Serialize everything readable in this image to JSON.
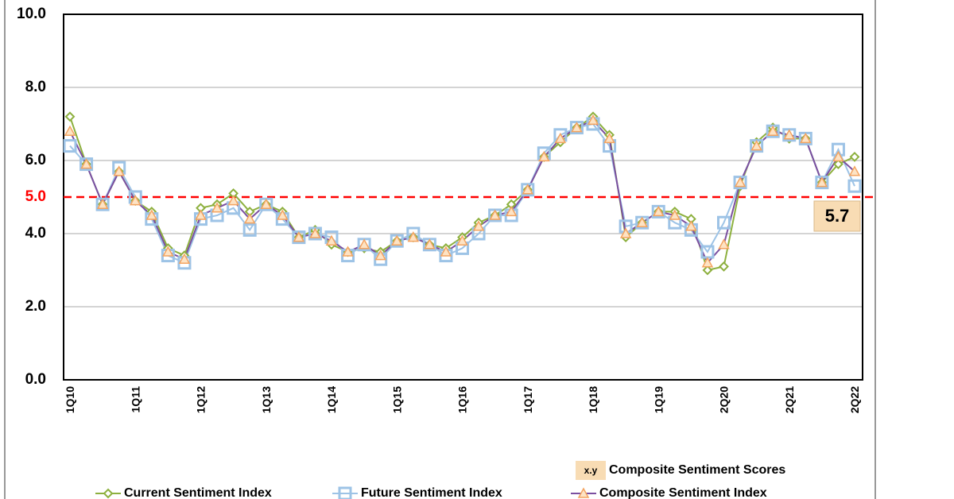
{
  "chart_data": {
    "type": "line",
    "categories": [
      "1Q10",
      null,
      null,
      null,
      "1Q11",
      null,
      null,
      null,
      "1Q12",
      null,
      null,
      null,
      "1Q13",
      null,
      null,
      null,
      "1Q14",
      null,
      null,
      null,
      "1Q15",
      null,
      null,
      null,
      "1Q16",
      null,
      null,
      null,
      "1Q17",
      null,
      null,
      null,
      "1Q18",
      null,
      null,
      null,
      "1Q19",
      null,
      null,
      null,
      "2Q20",
      null,
      null,
      null,
      "2Q21",
      null,
      null,
      null,
      "2Q22"
    ],
    "series": [
      {
        "name": "Current Sentiment Index",
        "color": "#8db03e",
        "marker": "diamond",
        "values": [
          7.2,
          5.9,
          4.8,
          5.7,
          4.9,
          4.6,
          3.6,
          3.4,
          4.7,
          4.8,
          5.1,
          4.6,
          4.8,
          4.6,
          3.9,
          4.1,
          3.7,
          3.5,
          3.6,
          3.5,
          3.8,
          3.9,
          3.7,
          3.6,
          3.9,
          4.3,
          4.5,
          4.8,
          5.2,
          6.1,
          6.5,
          6.9,
          7.2,
          6.7,
          3.9,
          4.3,
          4.6,
          4.6,
          4.4,
          3.0,
          3.1,
          5.3,
          6.5,
          6.9,
          6.6,
          6.6,
          5.4,
          5.9,
          6.1
        ]
      },
      {
        "name": "Future Sentiment Index",
        "color": "#9dc3e6",
        "marker": "square",
        "values": [
          6.4,
          5.9,
          4.8,
          5.8,
          5.0,
          4.4,
          3.4,
          3.2,
          4.4,
          4.5,
          4.7,
          4.1,
          4.8,
          4.4,
          3.9,
          4.0,
          3.9,
          3.4,
          3.7,
          3.3,
          3.8,
          4.0,
          3.7,
          3.4,
          3.6,
          4.0,
          4.5,
          4.5,
          5.2,
          6.2,
          6.7,
          6.9,
          7.0,
          6.4,
          4.2,
          4.3,
          4.6,
          4.3,
          4.1,
          3.5,
          4.3,
          5.4,
          6.4,
          6.8,
          6.7,
          6.6,
          5.4,
          6.3,
          5.3
        ]
      },
      {
        "name": "Composite Sentiment Index",
        "color": "#7b4fa0",
        "marker": "triangle",
        "values": [
          6.8,
          5.9,
          4.8,
          5.7,
          4.9,
          4.5,
          3.5,
          3.3,
          4.5,
          4.7,
          4.9,
          4.4,
          4.8,
          4.5,
          3.9,
          4.0,
          3.8,
          3.5,
          3.7,
          3.4,
          3.8,
          3.9,
          3.7,
          3.5,
          3.8,
          4.2,
          4.5,
          4.6,
          5.2,
          6.1,
          6.6,
          6.9,
          7.1,
          6.6,
          4.0,
          4.3,
          4.6,
          4.5,
          4.2,
          3.2,
          3.7,
          5.4,
          6.4,
          6.8,
          6.7,
          6.6,
          5.4,
          6.1,
          5.7
        ]
      }
    ],
    "ylim": [
      0,
      10
    ],
    "yticks": [
      {
        "value": 0,
        "label": "0.0"
      },
      {
        "value": 2,
        "label": "2.0"
      },
      {
        "value": 4,
        "label": "4.0"
      },
      {
        "value": 6,
        "label": "6.0"
      },
      {
        "value": 8,
        "label": "8.0"
      },
      {
        "value": 10,
        "label": "10.0"
      }
    ],
    "grid": true,
    "reference_line": {
      "value": 5,
      "label": "5.0",
      "color": "#ff0000"
    },
    "callout": "5.7",
    "score_legend": {
      "sample": "x.y",
      "label": "Composite Sentiment Scores"
    }
  }
}
